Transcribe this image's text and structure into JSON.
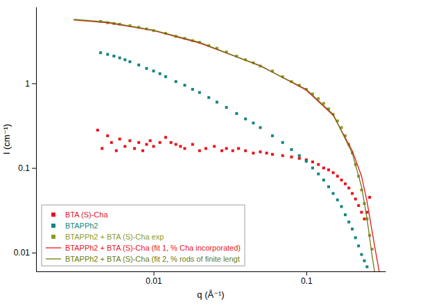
{
  "chart_data": {
    "type": "scatter",
    "x_label": "q (Å⁻¹)",
    "y_label": "I (cm⁻¹)",
    "log": true,
    "grid": false,
    "legend": "lower left",
    "xlim": [
      0.0017,
      0.33
    ],
    "ylim": [
      0.006,
      8
    ],
    "xticks": [
      0.01,
      0.1
    ],
    "yticks": [
      0.01,
      0.1,
      1
    ],
    "series": [
      {
        "name": "BTA (S)-Cha",
        "type": "scatter",
        "marker": "square",
        "color": "#e8141c",
        "x": [
          0.0043,
          0.0046,
          0.005,
          0.0053,
          0.0057,
          0.006,
          0.0065,
          0.007,
          0.0075,
          0.008,
          0.0085,
          0.009,
          0.0095,
          0.01,
          0.011,
          0.012,
          0.013,
          0.014,
          0.015,
          0.016,
          0.018,
          0.02,
          0.022,
          0.025,
          0.028,
          0.03,
          0.033,
          0.036,
          0.04,
          0.045,
          0.05,
          0.055,
          0.06,
          0.07,
          0.08,
          0.09,
          0.1,
          0.11,
          0.12,
          0.13,
          0.14,
          0.15,
          0.16,
          0.17,
          0.18,
          0.19,
          0.2,
          0.21,
          0.22,
          0.23,
          0.24,
          0.25,
          0.26
        ],
        "values": [
          0.28,
          0.17,
          0.24,
          0.2,
          0.16,
          0.22,
          0.18,
          0.21,
          0.17,
          0.2,
          0.16,
          0.19,
          0.21,
          0.18,
          0.2,
          0.23,
          0.2,
          0.19,
          0.18,
          0.17,
          0.19,
          0.16,
          0.17,
          0.18,
          0.16,
          0.17,
          0.16,
          0.17,
          0.16,
          0.15,
          0.155,
          0.15,
          0.145,
          0.14,
          0.135,
          0.13,
          0.125,
          0.118,
          0.11,
          0.1,
          0.095,
          0.088,
          0.08,
          0.072,
          0.065,
          0.058,
          0.05,
          0.043,
          0.036,
          0.03,
          0.025,
          0.03,
          0.045
        ]
      },
      {
        "name": "BTAPPh2",
        "type": "scatter",
        "marker": "square",
        "color": "#138580",
        "x": [
          0.0045,
          0.005,
          0.0055,
          0.006,
          0.0065,
          0.007,
          0.008,
          0.009,
          0.01,
          0.011,
          0.012,
          0.014,
          0.016,
          0.018,
          0.02,
          0.023,
          0.026,
          0.03,
          0.035,
          0.04,
          0.045,
          0.05,
          0.06,
          0.07,
          0.08,
          0.09,
          0.1,
          0.11,
          0.12,
          0.13,
          0.14,
          0.15,
          0.16,
          0.17,
          0.18,
          0.19,
          0.2,
          0.21,
          0.22,
          0.23,
          0.24,
          0.25
        ],
        "values": [
          2.3,
          2.2,
          2.1,
          2.0,
          1.9,
          1.8,
          1.65,
          1.5,
          1.4,
          1.3,
          1.2,
          1.05,
          0.95,
          0.85,
          0.78,
          0.68,
          0.6,
          0.52,
          0.44,
          0.38,
          0.34,
          0.3,
          0.24,
          0.2,
          0.165,
          0.14,
          0.12,
          0.1,
          0.085,
          0.072,
          0.06,
          0.05,
          0.042,
          0.035,
          0.028,
          0.023,
          0.019,
          0.015,
          0.012,
          0.0095,
          0.008,
          0.0068
        ]
      },
      {
        "name": "BTAPPh2 + BTA (S)-Cha exp",
        "type": "scatter",
        "marker": "square",
        "color": "#8c9a2a",
        "x": [
          0.0045,
          0.005,
          0.0055,
          0.006,
          0.007,
          0.008,
          0.009,
          0.01,
          0.012,
          0.014,
          0.016,
          0.018,
          0.02,
          0.023,
          0.026,
          0.03,
          0.035,
          0.04,
          0.045,
          0.05,
          0.06,
          0.07,
          0.08,
          0.09,
          0.1,
          0.11,
          0.12,
          0.13,
          0.14,
          0.15,
          0.16,
          0.17,
          0.18,
          0.19,
          0.2,
          0.21,
          0.22,
          0.23,
          0.24,
          0.25,
          0.26,
          0.27
        ],
        "values": [
          5.4,
          5.2,
          5.1,
          5.0,
          4.8,
          4.6,
          4.4,
          4.2,
          3.9,
          3.6,
          3.4,
          3.2,
          3.05,
          2.8,
          2.6,
          2.35,
          2.1,
          1.9,
          1.75,
          1.6,
          1.4,
          1.2,
          1.05,
          0.95,
          0.85,
          0.75,
          0.66,
          0.58,
          0.5,
          0.43,
          0.36,
          0.3,
          0.24,
          0.19,
          0.15,
          0.11,
          0.08,
          0.055,
          0.038,
          0.025,
          0.016,
          0.011
        ]
      },
      {
        "name": "BTAPPh2 + BTA (S)-Cha (fit 1, % Cha incorporated)",
        "type": "line",
        "line_style": "solid",
        "color": "#e8141c",
        "x": [
          0.003,
          0.005,
          0.01,
          0.02,
          0.05,
          0.1,
          0.15,
          0.2,
          0.23,
          0.25,
          0.28,
          0.3
        ],
        "values": [
          5.6,
          5.2,
          4.2,
          3.0,
          1.62,
          0.83,
          0.42,
          0.16,
          0.08,
          0.04,
          0.012,
          0.006
        ]
      },
      {
        "name": "BTAPPh2 + BTA (S)-Cha (fit 2, % rods of finite lengt",
        "type": "line",
        "line_style": "solid",
        "color": "#6b7a10",
        "x": [
          0.003,
          0.005,
          0.01,
          0.02,
          0.05,
          0.1,
          0.15,
          0.2,
          0.23,
          0.25,
          0.27,
          0.28
        ],
        "values": [
          5.7,
          5.3,
          4.25,
          3.05,
          1.6,
          0.85,
          0.43,
          0.15,
          0.06,
          0.025,
          0.009,
          0.006
        ]
      }
    ]
  }
}
